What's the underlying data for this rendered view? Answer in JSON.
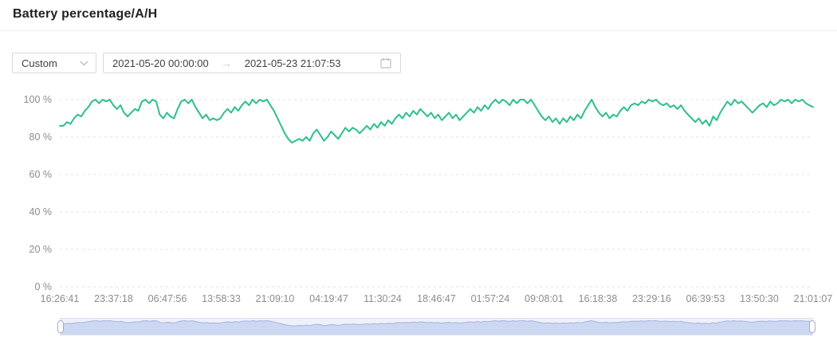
{
  "header": {
    "title": "Battery percentage/A/H"
  },
  "toolbar": {
    "preset_select": {
      "value": "Custom",
      "icon": "chevron-down-icon"
    },
    "date_range": {
      "start": "2021-05-20 00:00:00",
      "arrow": "→",
      "end": "2021-05-23 21:07:53",
      "icon": "calendar-icon"
    }
  },
  "chart_data": {
    "type": "line",
    "title": "Battery percentage/A/H",
    "xlabel": "",
    "ylabel": "%",
    "ylim": [
      0,
      100
    ],
    "grid": true,
    "grid_style": "dashed",
    "legend": "none",
    "y_ticks": [
      "0 %",
      "20 %",
      "40 %",
      "60 %",
      "80 %",
      "100 %"
    ],
    "x_labels": [
      "16:26:41",
      "23:37:18",
      "06:47:56",
      "13:58:33",
      "21:09:10",
      "04:19:47",
      "11:30:24",
      "18:46:47",
      "01:57:24",
      "09:08:01",
      "16:18:38",
      "23:29:16",
      "06:39:53",
      "13:50:30",
      "21:01:07"
    ],
    "series": [
      {
        "name": "Battery percentage",
        "color": "#2dbe8f",
        "values": [
          86,
          86,
          88,
          87,
          90,
          92,
          91,
          94,
          96,
          99,
          100,
          98,
          100,
          99,
          100,
          97,
          95,
          97,
          93,
          91,
          93,
          95,
          94,
          99,
          100,
          98,
          100,
          99,
          92,
          90,
          93,
          91,
          90,
          95,
          99,
          100,
          98,
          100,
          96,
          93,
          90,
          92,
          89,
          90,
          89,
          90,
          93,
          95,
          93,
          96,
          94,
          97,
          99,
          97,
          100,
          98,
          100,
          99,
          100,
          97,
          94,
          90,
          86,
          82,
          79,
          77,
          78,
          79,
          78,
          80,
          78,
          82,
          84,
          81,
          78,
          80,
          83,
          81,
          79,
          82,
          85,
          83,
          85,
          84,
          82,
          84,
          86,
          84,
          87,
          85,
          88,
          86,
          89,
          87,
          90,
          92,
          90,
          93,
          91,
          94,
          92,
          95,
          93,
          91,
          93,
          90,
          92,
          89,
          91,
          93,
          90,
          92,
          89,
          91,
          93,
          95,
          93,
          96,
          94,
          97,
          95,
          98,
          100,
          98,
          100,
          99,
          97,
          100,
          98,
          100,
          100,
          98,
          100,
          97,
          94,
          91,
          89,
          91,
          88,
          90,
          87,
          90,
          88,
          91,
          89,
          92,
          90,
          94,
          97,
          100,
          96,
          93,
          91,
          93,
          90,
          92,
          91,
          94,
          96,
          94,
          97,
          98,
          97,
          99,
          98,
          100,
          99,
          100,
          98,
          97,
          98,
          96,
          97,
          95,
          97,
          94,
          92,
          90,
          88,
          90,
          87,
          89,
          86,
          91,
          89,
          93,
          96,
          99,
          97,
          100,
          98,
          99,
          97,
          95,
          93,
          95,
          97,
          98,
          96,
          99,
          97,
          98,
          100,
          99,
          100,
          98,
          100,
          99,
          100,
          98,
          97,
          96
        ]
      }
    ],
    "datazoom": {
      "selected_range_pct": [
        0,
        100
      ],
      "fill": "#ccd7f2",
      "line": "#a3b4e2",
      "track_bg": "#eef1fa"
    }
  }
}
